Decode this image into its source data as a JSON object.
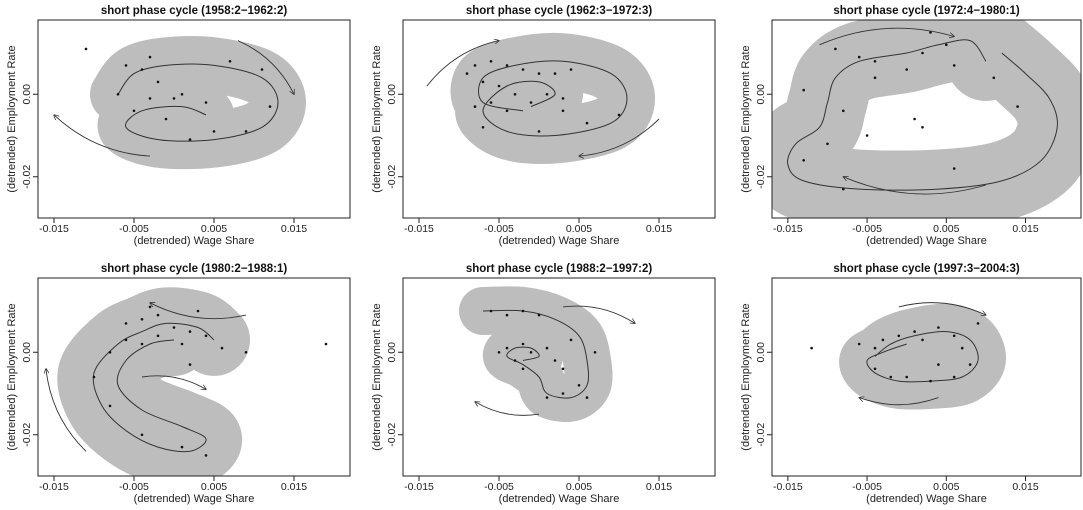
{
  "chart_data": [
    {
      "type": "scatter",
      "title": "short phase cycle (1958:2−1962:2)",
      "xlabel": "(detrended) Wage Share",
      "ylabel": "(detrended) Employment Rate",
      "xlim": [
        -0.017,
        0.022
      ],
      "ylim": [
        -0.03,
        0.018
      ],
      "xticks": [
        -0.015,
        -0.005,
        0.005,
        0.015
      ],
      "xtick_labels": [
        "-0.015",
        "-0.005",
        "0.005",
        "0.015"
      ],
      "yticks": [
        -0.02,
        0.0
      ],
      "ytick_labels": [
        "-0.02",
        "0.00"
      ],
      "points": [
        [
          -0.011,
          0.011
        ],
        [
          -0.006,
          0.007
        ],
        [
          -0.004,
          0.006
        ],
        [
          -0.002,
          0.003
        ],
        [
          0.001,
          0.0
        ],
        [
          -0.003,
          -0.001
        ],
        [
          0.004,
          -0.002
        ],
        [
          -0.001,
          -0.006
        ],
        [
          0.009,
          -0.009
        ],
        [
          0.005,
          -0.009
        ],
        [
          -0.003,
          0.009
        ],
        [
          0.011,
          0.006
        ],
        [
          0.0,
          -0.001
        ],
        [
          -0.005,
          -0.004
        ],
        [
          0.007,
          0.008
        ],
        [
          0.002,
          -0.011
        ],
        [
          -0.007,
          0.0
        ],
        [
          0.012,
          -0.003
        ]
      ],
      "path": [
        [
          -0.007,
          0.0
        ],
        [
          -0.005,
          0.005
        ],
        [
          -0.001,
          0.007
        ],
        [
          0.005,
          0.007
        ],
        [
          0.011,
          0.004
        ],
        [
          0.013,
          -0.002
        ],
        [
          0.011,
          -0.008
        ],
        [
          0.005,
          -0.011
        ],
        [
          -0.002,
          -0.011
        ],
        [
          -0.006,
          -0.008
        ],
        [
          -0.004,
          -0.004
        ],
        [
          0.001,
          -0.003
        ],
        [
          0.004,
          -0.005
        ]
      ],
      "band_width": 0.0035,
      "arrows": [
        {
          "from": [
            0.008,
            0.013
          ],
          "to": [
            0.015,
            0.0
          ]
        },
        {
          "from": [
            -0.003,
            -0.015
          ],
          "to": [
            -0.015,
            -0.005
          ]
        }
      ]
    },
    {
      "type": "scatter",
      "title": "short phase cycle (1962:3−1972:3)",
      "xlabel": "(detrended) Wage Share",
      "ylabel": "(detrended) Employment Rate",
      "xlim": [
        -0.017,
        0.022
      ],
      "ylim": [
        -0.03,
        0.018
      ],
      "xticks": [
        -0.015,
        -0.005,
        0.005,
        0.015
      ],
      "xtick_labels": [
        "-0.015",
        "-0.005",
        "0.005",
        "0.015"
      ],
      "yticks": [
        -0.02,
        0.0
      ],
      "ytick_labels": [
        "-0.02",
        "0.00"
      ],
      "points": [
        [
          -0.008,
          0.007
        ],
        [
          -0.006,
          0.008
        ],
        [
          -0.004,
          0.007
        ],
        [
          -0.002,
          0.006
        ],
        [
          0.0,
          0.005
        ],
        [
          -0.007,
          0.003
        ],
        [
          -0.005,
          0.002
        ],
        [
          -0.006,
          -0.002
        ],
        [
          -0.004,
          -0.004
        ],
        [
          -0.003,
          0.0
        ],
        [
          -0.001,
          -0.002
        ],
        [
          0.001,
          0.0
        ],
        [
          0.003,
          -0.004
        ],
        [
          0.006,
          -0.007
        ],
        [
          0.002,
          0.005
        ],
        [
          -0.007,
          -0.008
        ],
        [
          0.0,
          -0.009
        ],
        [
          0.003,
          -0.001
        ],
        [
          -0.009,
          0.005
        ],
        [
          0.004,
          0.006
        ],
        [
          -0.008,
          -0.003
        ],
        [
          0.01,
          -0.005
        ]
      ],
      "path": [
        [
          -0.002,
          -0.004
        ],
        [
          -0.007,
          -0.002
        ],
        [
          -0.007,
          0.004
        ],
        [
          -0.003,
          0.007
        ],
        [
          0.003,
          0.008
        ],
        [
          0.009,
          0.005
        ],
        [
          0.011,
          -0.001
        ],
        [
          0.009,
          -0.007
        ],
        [
          0.002,
          -0.01
        ],
        [
          -0.004,
          -0.009
        ],
        [
          -0.007,
          -0.004
        ],
        [
          -0.004,
          0.002
        ],
        [
          0.0,
          0.003
        ],
        [
          0.002,
          0.0
        ],
        [
          -0.001,
          -0.003
        ]
      ],
      "band_width": 0.0035,
      "arrows": [
        {
          "from": [
            -0.014,
            0.002
          ],
          "to": [
            -0.005,
            0.013
          ]
        },
        {
          "from": [
            0.015,
            -0.006
          ],
          "to": [
            0.005,
            -0.015
          ]
        }
      ]
    },
    {
      "type": "scatter",
      "title": "short phase cycle (1972:4−1980:1)",
      "xlabel": "(detrended) Wage Share",
      "ylabel": "(detrended) Employment Rate",
      "xlim": [
        -0.017,
        0.022
      ],
      "ylim": [
        -0.03,
        0.018
      ],
      "xticks": [
        -0.015,
        -0.005,
        0.005,
        0.015
      ],
      "xtick_labels": [
        "-0.015",
        "-0.005",
        "0.005",
        "0.015"
      ],
      "yticks": [
        -0.02,
        0.0
      ],
      "ytick_labels": [
        "-0.02",
        "0.00"
      ],
      "points": [
        [
          -0.009,
          0.011
        ],
        [
          -0.006,
          0.009
        ],
        [
          -0.004,
          0.008
        ],
        [
          0.0,
          0.006
        ],
        [
          0.002,
          0.01
        ],
        [
          0.005,
          0.012
        ],
        [
          0.006,
          0.007
        ],
        [
          -0.013,
          0.001
        ],
        [
          -0.008,
          -0.004
        ],
        [
          -0.005,
          -0.01
        ],
        [
          -0.004,
          0.004
        ],
        [
          0.001,
          -0.006
        ],
        [
          0.002,
          -0.008
        ],
        [
          0.006,
          -0.018
        ],
        [
          0.014,
          -0.003
        ],
        [
          -0.013,
          -0.016
        ],
        [
          -0.008,
          -0.023
        ],
        [
          0.011,
          0.004
        ],
        [
          0.003,
          0.015
        ],
        [
          -0.01,
          -0.012
        ]
      ],
      "path": [
        [
          0.01,
          0.008
        ],
        [
          0.008,
          0.013
        ],
        [
          0.004,
          0.012
        ],
        [
          0.0,
          0.01
        ],
        [
          -0.006,
          0.008
        ],
        [
          -0.009,
          0.004
        ],
        [
          -0.01,
          -0.002
        ],
        [
          -0.011,
          -0.008
        ],
        [
          -0.014,
          -0.012
        ],
        [
          -0.015,
          -0.017
        ],
        [
          -0.013,
          -0.021
        ],
        [
          -0.006,
          -0.023
        ],
        [
          0.004,
          -0.023
        ],
        [
          0.012,
          -0.021
        ],
        [
          0.017,
          -0.016
        ],
        [
          0.019,
          -0.008
        ],
        [
          0.018,
          -0.001
        ],
        [
          0.015,
          0.005
        ],
        [
          0.012,
          0.01
        ]
      ],
      "band_width": 0.005,
      "arrows": [
        {
          "from": [
            -0.011,
            0.012
          ],
          "to": [
            0.006,
            0.014
          ]
        },
        {
          "from": [
            0.01,
            -0.022
          ],
          "to": [
            -0.008,
            -0.02
          ]
        }
      ]
    },
    {
      "type": "scatter",
      "title": "short phase cycle (1980:2−1988:1)",
      "xlabel": "(detrended) Wage Share",
      "ylabel": "(detrended) Employment Rate",
      "xlim": [
        -0.017,
        0.022
      ],
      "ylim": [
        -0.03,
        0.018
      ],
      "xticks": [
        -0.015,
        -0.005,
        0.005,
        0.015
      ],
      "xtick_labels": [
        "-0.015",
        "-0.005",
        "0.005",
        "0.015"
      ],
      "yticks": [
        -0.02,
        0.0
      ],
      "ytick_labels": [
        "-0.02",
        "0.00"
      ],
      "points": [
        [
          -0.006,
          0.007
        ],
        [
          -0.004,
          0.008
        ],
        [
          -0.002,
          0.009
        ],
        [
          0.0,
          0.006
        ],
        [
          0.002,
          0.005
        ],
        [
          0.004,
          0.004
        ],
        [
          -0.006,
          0.003
        ],
        [
          -0.004,
          0.002
        ],
        [
          -0.002,
          0.004
        ],
        [
          0.001,
          0.002
        ],
        [
          0.006,
          0.001
        ],
        [
          0.009,
          0.0
        ],
        [
          0.019,
          0.002
        ],
        [
          -0.01,
          -0.006
        ],
        [
          -0.008,
          -0.013
        ],
        [
          -0.004,
          -0.02
        ],
        [
          0.001,
          -0.023
        ],
        [
          0.004,
          -0.025
        ],
        [
          -0.003,
          0.011
        ],
        [
          0.003,
          0.01
        ],
        [
          -0.008,
          0.0
        ],
        [
          0.002,
          -0.003
        ]
      ],
      "path": [
        [
          0.005,
          0.003
        ],
        [
          0.003,
          0.006
        ],
        [
          -0.001,
          0.007
        ],
        [
          -0.004,
          0.005
        ],
        [
          -0.007,
          0.002
        ],
        [
          -0.01,
          -0.005
        ],
        [
          -0.009,
          -0.013
        ],
        [
          -0.006,
          -0.019
        ],
        [
          -0.002,
          -0.023
        ],
        [
          0.002,
          -0.024
        ],
        [
          0.004,
          -0.021
        ],
        [
          0.001,
          -0.018
        ],
        [
          -0.004,
          -0.014
        ],
        [
          -0.007,
          -0.008
        ],
        [
          -0.006,
          -0.002
        ],
        [
          -0.003,
          0.002
        ],
        [
          0.0,
          0.003
        ]
      ],
      "band_width": 0.0045,
      "arrows": [
        {
          "from": [
            0.009,
            0.009
          ],
          "to": [
            -0.003,
            0.012
          ]
        },
        {
          "from": [
            -0.011,
            -0.024
          ],
          "to": [
            -0.016,
            -0.004
          ]
        },
        {
          "from": [
            -0.004,
            -0.006
          ],
          "to": [
            0.004,
            -0.009
          ]
        }
      ]
    },
    {
      "type": "scatter",
      "title": "short phase cycle (1988:2−1997:2)",
      "xlabel": "(detrended) Wage Share",
      "ylabel": "(detrended) Employment Rate",
      "xlim": [
        -0.017,
        0.022
      ],
      "ylim": [
        -0.03,
        0.018
      ],
      "xticks": [
        -0.015,
        -0.005,
        0.005,
        0.015
      ],
      "xtick_labels": [
        "-0.015",
        "-0.005",
        "0.005",
        "0.015"
      ],
      "yticks": [
        -0.02,
        0.0
      ],
      "ytick_labels": [
        "-0.02",
        "0.00"
      ],
      "points": [
        [
          -0.006,
          0.01
        ],
        [
          -0.004,
          0.009
        ],
        [
          -0.002,
          0.01
        ],
        [
          0.0,
          0.009
        ],
        [
          -0.004,
          0.001
        ],
        [
          -0.002,
          0.002
        ],
        [
          -0.001,
          0.0
        ],
        [
          0.001,
          0.001
        ],
        [
          0.002,
          -0.002
        ],
        [
          0.003,
          -0.004
        ],
        [
          0.005,
          -0.008
        ],
        [
          0.003,
          -0.01
        ],
        [
          0.001,
          -0.011
        ],
        [
          -0.002,
          -0.004
        ],
        [
          -0.005,
          0.0
        ],
        [
          0.006,
          -0.011
        ],
        [
          0.004,
          0.003
        ],
        [
          0.007,
          0.0
        ],
        [
          -0.003,
          -0.002
        ]
      ],
      "path": [
        [
          -0.007,
          0.01
        ],
        [
          -0.002,
          0.01
        ],
        [
          0.002,
          0.008
        ],
        [
          0.005,
          0.004
        ],
        [
          0.006,
          -0.002
        ],
        [
          0.006,
          -0.008
        ],
        [
          0.004,
          -0.011
        ],
        [
          0.001,
          -0.01
        ],
        [
          0.0,
          -0.006
        ],
        [
          -0.002,
          -0.003
        ],
        [
          -0.004,
          -0.001
        ],
        [
          -0.003,
          0.001
        ],
        [
          -0.001,
          0.001
        ],
        [
          0.0,
          -0.001
        ],
        [
          -0.002,
          -0.002
        ]
      ],
      "band_width": 0.003,
      "arrows": [
        {
          "from": [
            0.003,
            0.011
          ],
          "to": [
            0.012,
            0.007
          ]
        },
        {
          "from": [
            0.0,
            -0.015
          ],
          "to": [
            -0.008,
            -0.012
          ]
        }
      ]
    },
    {
      "type": "scatter",
      "title": "short phase cycle (1997:3−2004:3)",
      "xlabel": "(detrended) Wage Share",
      "ylabel": "(detrended) Employment Rate",
      "xlim": [
        -0.017,
        0.022
      ],
      "ylim": [
        -0.03,
        0.018
      ],
      "xticks": [
        -0.015,
        -0.005,
        0.005,
        0.015
      ],
      "xtick_labels": [
        "-0.015",
        "-0.005",
        "0.005",
        "0.015"
      ],
      "yticks": [
        -0.02,
        0.0
      ],
      "ytick_labels": [
        "-0.02",
        "0.00"
      ],
      "points": [
        [
          -0.006,
          0.002
        ],
        [
          -0.004,
          0.001
        ],
        [
          -0.003,
          0.003
        ],
        [
          -0.001,
          0.004
        ],
        [
          0.001,
          0.005
        ],
        [
          0.002,
          0.003
        ],
        [
          0.004,
          0.006
        ],
        [
          0.006,
          0.004
        ],
        [
          0.007,
          0.001
        ],
        [
          0.008,
          -0.003
        ],
        [
          0.006,
          -0.006
        ],
        [
          0.003,
          -0.007
        ],
        [
          0.0,
          -0.006
        ],
        [
          -0.002,
          -0.006
        ],
        [
          -0.004,
          -0.004
        ],
        [
          -0.012,
          0.001
        ],
        [
          0.009,
          0.007
        ],
        [
          0.004,
          -0.003
        ]
      ],
      "path": [
        [
          -0.004,
          -0.001
        ],
        [
          -0.002,
          0.002
        ],
        [
          0.001,
          0.004
        ],
        [
          0.005,
          0.005
        ],
        [
          0.008,
          0.003
        ],
        [
          0.009,
          -0.002
        ],
        [
          0.007,
          -0.006
        ],
        [
          0.003,
          -0.007
        ],
        [
          -0.001,
          -0.007
        ],
        [
          -0.004,
          -0.005
        ],
        [
          -0.005,
          -0.002
        ],
        [
          -0.003,
          0.0
        ],
        [
          0.0,
          0.002
        ]
      ],
      "band_width": 0.0035,
      "arrows": [
        {
          "from": [
            -0.001,
            0.011
          ],
          "to": [
            0.01,
            0.009
          ]
        },
        {
          "from": [
            0.004,
            -0.011
          ],
          "to": [
            -0.006,
            -0.011
          ]
        }
      ]
    }
  ]
}
